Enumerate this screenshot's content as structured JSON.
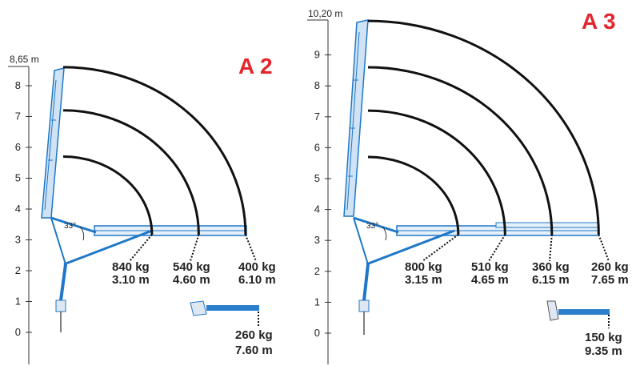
{
  "colors": {
    "boom": "#1f77c8",
    "boom_light": "#7fb6e6",
    "arc": "#111111",
    "label_red": "#e3262b"
  },
  "panels": [
    {
      "id": "a2",
      "label": "A 2",
      "axis_top": "8,65 m",
      "max_height": 8.65,
      "y_ticks": [
        0,
        1,
        2,
        3,
        4,
        5,
        6,
        7,
        8
      ],
      "angle": "33°",
      "arcs": [
        {
          "radius": 3.1,
          "top": 5.7,
          "kg": "840 kg",
          "m": "3.10 m"
        },
        {
          "radius": 4.6,
          "top": 7.2,
          "kg": "540 kg",
          "m": "4.60 m"
        },
        {
          "radius": 6.1,
          "top": 8.6,
          "kg": "400 kg",
          "m": "6.10 m"
        }
      ],
      "extension": {
        "kg": "260 kg",
        "m": "7.60 m"
      }
    },
    {
      "id": "a3",
      "label": "A 3",
      "axis_top": "10,20 m",
      "max_height": 10.2,
      "y_ticks": [
        0,
        1,
        2,
        3,
        4,
        5,
        6,
        7,
        8,
        9
      ],
      "angle": "33°",
      "arcs": [
        {
          "radius": 3.15,
          "top": 5.7,
          "kg": "800 kg",
          "m": "3.15 m"
        },
        {
          "radius": 4.65,
          "top": 7.2,
          "kg": "510 kg",
          "m": "4.65 m"
        },
        {
          "radius": 6.15,
          "top": 8.6,
          "kg": "360 kg",
          "m": "6.15 m"
        },
        {
          "radius": 7.65,
          "top": 10.1,
          "kg": "260 kg",
          "m": "7.65 m"
        }
      ],
      "extension": {
        "kg": "150 kg",
        "m": "9.35 m"
      }
    }
  ]
}
